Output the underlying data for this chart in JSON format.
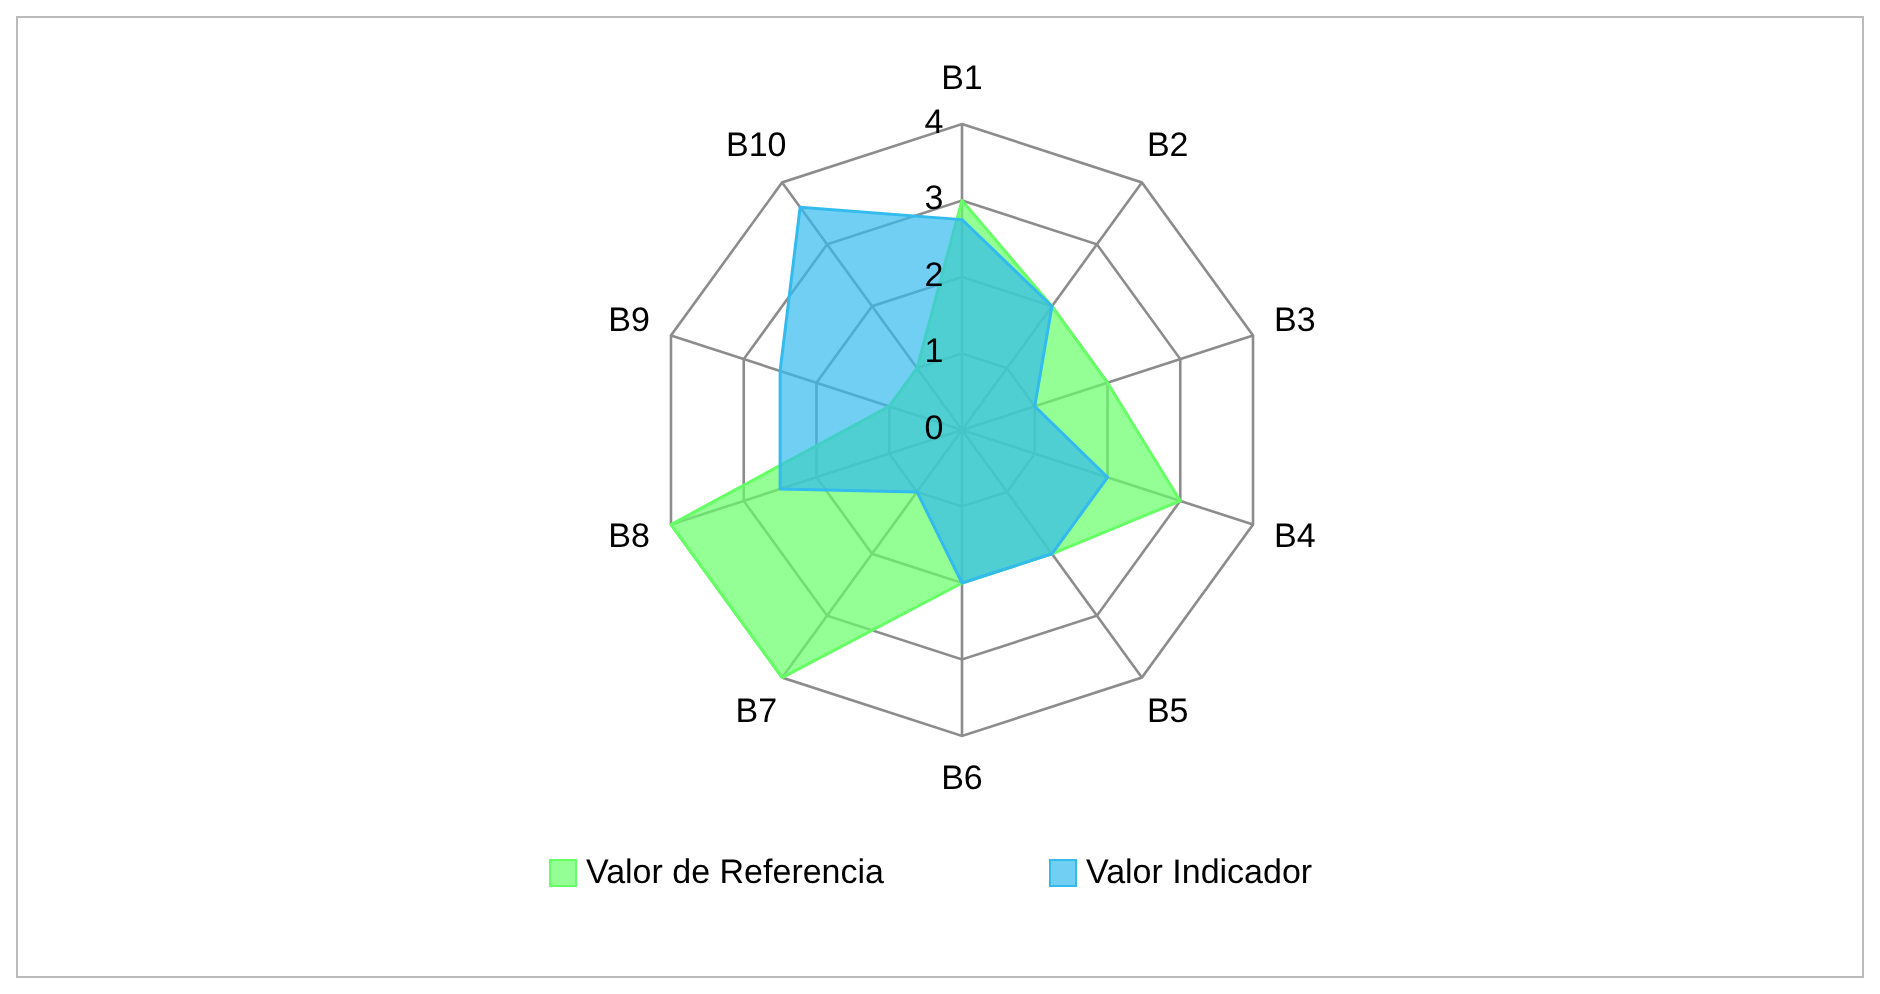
{
  "chart_data": {
    "type": "radar",
    "categories": [
      "B1",
      "B2",
      "B3",
      "B4",
      "B5",
      "B6",
      "B7",
      "B8",
      "B9",
      "B10"
    ],
    "series": [
      {
        "name": "Valor de Referencia",
        "color": "#66ff66",
        "values": [
          3,
          2,
          2,
          3,
          2,
          2,
          4,
          4,
          1,
          1
        ]
      },
      {
        "name": "Valor Indicador",
        "color": "#33bbee",
        "values": [
          2.75,
          2,
          1,
          2,
          2,
          2,
          1,
          2.5,
          2.5,
          3.6
        ]
      }
    ],
    "ylim": [
      0,
      4
    ],
    "yticks": [
      0,
      1,
      2,
      3,
      4
    ],
    "grid": true,
    "legend": "bottom"
  }
}
